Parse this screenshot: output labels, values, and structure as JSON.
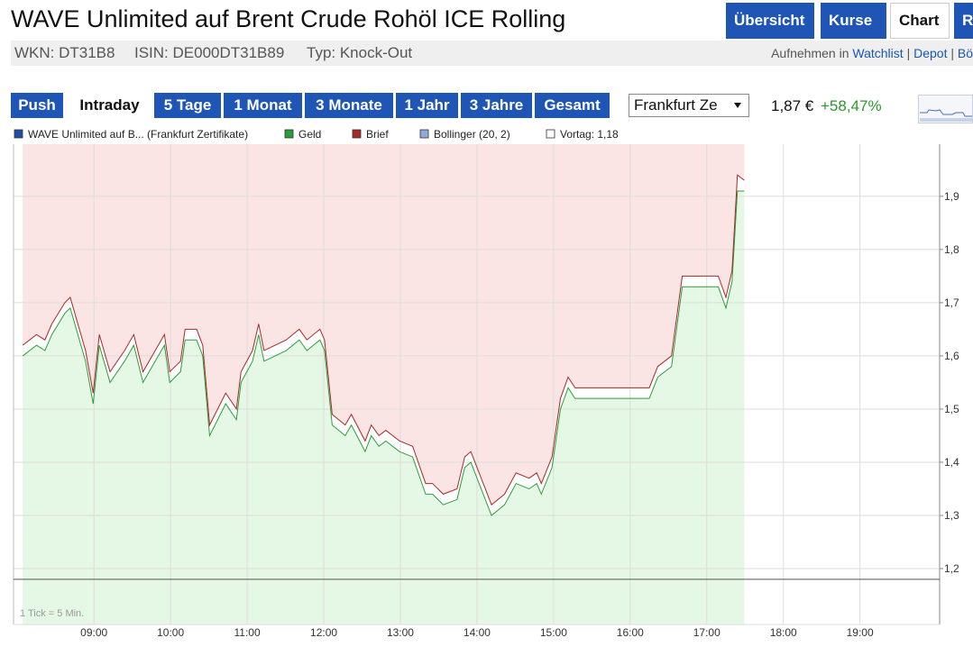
{
  "header": {
    "title": "WAVE Unlimited auf Brent Crude Rohöl ICE Rolling",
    "tabs": [
      {
        "label": "Übersicht",
        "active": false
      },
      {
        "label": "Kurse",
        "active": false
      },
      {
        "label": "Chart",
        "active": true
      },
      {
        "label": "R",
        "active": false
      }
    ],
    "info": [
      "WKN: DT31B8",
      "ISIN: DE000DT31B89",
      "Typ: Knock-Out"
    ],
    "watchlist": {
      "prefix": "Aufnehmen in",
      "links": [
        "Watchlist",
        "Depot",
        "Bö"
      ],
      "separator": "|"
    }
  },
  "toolbar": {
    "periods": [
      {
        "label": "Push",
        "active": false
      },
      {
        "label": "Intraday",
        "active": true
      },
      {
        "label": "5 Tage",
        "active": false
      },
      {
        "label": "1 Monat",
        "active": false
      },
      {
        "label": "3 Monate",
        "active": false
      },
      {
        "label": "1 Jahr",
        "active": false
      },
      {
        "label": "3 Jahre",
        "active": false
      },
      {
        "label": "Gesamt",
        "active": false
      }
    ],
    "exchange": "Frankfurt Ze",
    "price": "1,87 €",
    "change": "+58,47%"
  },
  "chart_data": {
    "type": "line",
    "annotation": "1 Tick = 5 Min.",
    "overlays": [
      {
        "name": "WAVE Unlimited auf B... (Frankfurt Zertifikate)",
        "color": "#1f4fa8"
      },
      {
        "name": "Bollinger (20, 2)",
        "color": "#92a9d9"
      }
    ],
    "reference": {
      "name": "Vortag: 1,18",
      "value": 1.18,
      "color": "#ffffff"
    },
    "x": [
      8.07,
      8.25,
      8.36,
      8.45,
      8.62,
      8.69,
      8.89,
      8.99,
      9.07,
      9.21,
      9.4,
      9.52,
      9.64,
      9.84,
      9.92,
      9.99,
      10.13,
      10.19,
      10.34,
      10.42,
      10.51,
      10.72,
      10.86,
      10.92,
      11.07,
      11.15,
      11.22,
      11.51,
      11.68,
      11.78,
      11.95,
      12.01,
      12.11,
      12.28,
      12.36,
      12.54,
      12.62,
      12.72,
      12.81,
      12.99,
      13.16,
      13.33,
      13.42,
      13.56,
      13.74,
      13.84,
      13.92,
      14.19,
      14.36,
      14.51,
      14.68,
      14.78,
      14.84,
      14.98,
      15.09,
      15.19,
      15.28,
      16.25,
      16.36,
      16.54,
      16.68,
      17.15,
      17.25,
      17.33,
      17.4,
      17.49
    ],
    "series": [
      {
        "name": "Geld",
        "color": "#2e9c3a",
        "fill": "#e5f8e5",
        "values": [
          1.6,
          1.62,
          1.61,
          1.64,
          1.68,
          1.69,
          1.59,
          1.51,
          1.62,
          1.55,
          1.59,
          1.62,
          1.55,
          1.6,
          1.62,
          1.55,
          1.57,
          1.63,
          1.63,
          1.6,
          1.45,
          1.51,
          1.48,
          1.55,
          1.59,
          1.64,
          1.59,
          1.61,
          1.63,
          1.61,
          1.63,
          1.61,
          1.47,
          1.45,
          1.47,
          1.42,
          1.45,
          1.43,
          1.44,
          1.42,
          1.41,
          1.34,
          1.34,
          1.32,
          1.33,
          1.39,
          1.4,
          1.3,
          1.32,
          1.36,
          1.35,
          1.36,
          1.34,
          1.39,
          1.5,
          1.54,
          1.52,
          1.52,
          1.56,
          1.58,
          1.73,
          1.73,
          1.69,
          1.74,
          1.91,
          1.91
        ]
      },
      {
        "name": "Brief",
        "color": "#a52a2a",
        "fill": "#fbe4e4",
        "values": [
          1.62,
          1.64,
          1.63,
          1.66,
          1.7,
          1.71,
          1.61,
          1.53,
          1.64,
          1.57,
          1.61,
          1.64,
          1.57,
          1.62,
          1.64,
          1.57,
          1.59,
          1.65,
          1.65,
          1.62,
          1.47,
          1.53,
          1.5,
          1.57,
          1.61,
          1.66,
          1.61,
          1.63,
          1.65,
          1.63,
          1.65,
          1.63,
          1.49,
          1.47,
          1.49,
          1.44,
          1.47,
          1.45,
          1.46,
          1.44,
          1.43,
          1.36,
          1.36,
          1.34,
          1.35,
          1.41,
          1.42,
          1.32,
          1.34,
          1.38,
          1.37,
          1.38,
          1.36,
          1.41,
          1.52,
          1.56,
          1.54,
          1.54,
          1.58,
          1.6,
          1.75,
          1.75,
          1.71,
          1.76,
          1.94,
          1.93
        ]
      }
    ],
    "xlim": [
      7.95,
      20.04
    ],
    "xticks": [
      {
        "value": 9,
        "label": "09:00"
      },
      {
        "value": 10,
        "label": "10:00"
      },
      {
        "value": 11,
        "label": "11:00"
      },
      {
        "value": 12,
        "label": "12:00"
      },
      {
        "value": 13,
        "label": "13:00"
      },
      {
        "value": 14,
        "label": "14:00"
      },
      {
        "value": 15,
        "label": "15:00"
      },
      {
        "value": 16,
        "label": "16:00"
      },
      {
        "value": 17,
        "label": "17:00"
      },
      {
        "value": 18,
        "label": "18:00"
      },
      {
        "value": 19,
        "label": "19:00"
      }
    ],
    "ylim": [
      1.095,
      1.998
    ],
    "yticks": [
      {
        "value": 1.2,
        "label": "1,2"
      },
      {
        "value": 1.3,
        "label": "1,3"
      },
      {
        "value": 1.4,
        "label": "1,4"
      },
      {
        "value": 1.5,
        "label": "1,5"
      },
      {
        "value": 1.6,
        "label": "1,6"
      },
      {
        "value": 1.7,
        "label": "1,7"
      },
      {
        "value": 1.8,
        "label": "1,8"
      },
      {
        "value": 1.9,
        "label": "1,9"
      }
    ],
    "grid": true
  }
}
